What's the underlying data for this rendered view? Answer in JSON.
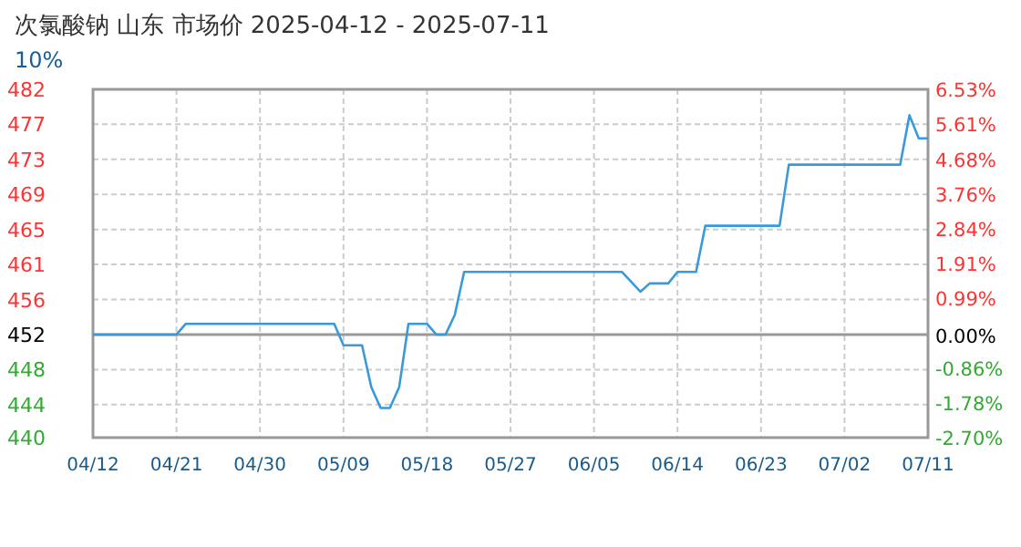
{
  "chart_data": {
    "type": "line",
    "title": "次氯酸钠 山东 市场价 2025-04-12 - 2025-07-11",
    "subtitle": "10%",
    "x": [
      "2025-04-12",
      "2025-04-21",
      "2025-04-22",
      "2025-05-08",
      "2025-05-09",
      "2025-05-11",
      "2025-05-12",
      "2025-05-13",
      "2025-05-14",
      "2025-05-15",
      "2025-05-16",
      "2025-05-18",
      "2025-05-19",
      "2025-05-20",
      "2025-05-21",
      "2025-05-22",
      "2025-06-08",
      "2025-06-10",
      "2025-06-11",
      "2025-06-13",
      "2025-06-14",
      "2025-06-16",
      "2025-06-17",
      "2025-06-25",
      "2025-06-26",
      "2025-07-08",
      "2025-07-09",
      "2025-07-10",
      "2025-07-11"
    ],
    "series": [
      {
        "color": "#3a9ad9",
        "values": [
          452,
          452,
          453.3,
          453.3,
          450.7,
          450.7,
          445.6,
          443.1,
          443.1,
          445.6,
          453.3,
          453.3,
          452,
          452,
          454.4,
          459.6,
          459.6,
          457.2,
          458.2,
          458.2,
          459.6,
          459.6,
          465.2,
          465.2,
          472.6,
          472.6,
          478.6,
          475.8,
          475.8
        ]
      }
    ],
    "xlim": [
      "2025-04-12",
      "2025-07-11"
    ],
    "xticks": [
      {
        "value": "2025-04-12",
        "label": "04/12"
      },
      {
        "value": "2025-04-21",
        "label": "04/21"
      },
      {
        "value": "2025-04-30",
        "label": "04/30"
      },
      {
        "value": "2025-05-09",
        "label": "05/09"
      },
      {
        "value": "2025-05-18",
        "label": "05/18"
      },
      {
        "value": "2025-05-27",
        "label": "05/27"
      },
      {
        "value": "2025-06-05",
        "label": "06/05"
      },
      {
        "value": "2025-06-14",
        "label": "06/14"
      },
      {
        "value": "2025-06-23",
        "label": "06/23"
      },
      {
        "value": "2025-07-02",
        "label": "07/02"
      },
      {
        "value": "2025-07-11",
        "label": "07/11"
      }
    ],
    "ylim": [
      439.5,
      481.74
    ],
    "yticks": [
      {
        "value": 439.5,
        "label": "440"
      },
      {
        "value": 443.5,
        "label": "444"
      },
      {
        "value": 447.75,
        "label": "448"
      },
      452,
      {
        "value": 456.25,
        "label": "456"
      },
      {
        "value": 460.5,
        "label": "461"
      },
      {
        "value": 464.75,
        "label": "465"
      },
      {
        "value": 469,
        "label": "469"
      },
      {
        "value": 473.25,
        "label": "473"
      },
      {
        "value": 477.5,
        "label": "477"
      },
      {
        "value": 481.74,
        "label": "482"
      }
    ],
    "y2lim": [
      -2.7,
      6.53
    ],
    "y2ticks": [
      {
        "value": -2.7,
        "label": "-2.70%"
      },
      {
        "value": -1.78,
        "label": "-1.78%"
      },
      {
        "value": -0.86,
        "label": "-0.86%"
      },
      {
        "value": 0,
        "label": "0.00%"
      },
      {
        "value": 0.99,
        "label": "0.99%"
      },
      {
        "value": 1.91,
        "label": "1.91%"
      },
      {
        "value": 2.84,
        "label": "2.84%"
      },
      {
        "value": 3.76,
        "label": "3.76%"
      },
      {
        "value": 4.68,
        "label": "4.68%"
      },
      {
        "value": 5.61,
        "label": "5.61%"
      },
      {
        "value": 6.53,
        "label": "6.53%"
      }
    ],
    "grid": true,
    "ref_lines": [
      {
        "axis": "y",
        "value": 452,
        "color": "#999999"
      }
    ]
  }
}
